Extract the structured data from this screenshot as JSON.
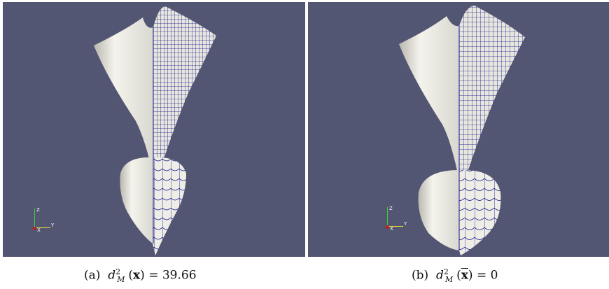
{
  "panels": [
    {
      "id": "a",
      "axis_labels": {
        "z": "Z",
        "y": "Y",
        "x": "X"
      },
      "caption": {
        "label": "(a)",
        "var": "d",
        "sup": "2",
        "sub": "M",
        "arg": "x",
        "arg_bar": false,
        "eq": "= 39.66"
      }
    },
    {
      "id": "b",
      "axis_labels": {
        "z": "Z",
        "y": "Y",
        "x": "X"
      },
      "caption": {
        "label": "(b)",
        "var": "d",
        "sup": "2",
        "sub": "M",
        "arg": "x",
        "arg_bar": true,
        "eq": "= 0"
      }
    }
  ],
  "colors": {
    "background": "#525672",
    "surface": "#f0efe8",
    "shade": "#b9b8b0",
    "mesh": "#10108a"
  }
}
